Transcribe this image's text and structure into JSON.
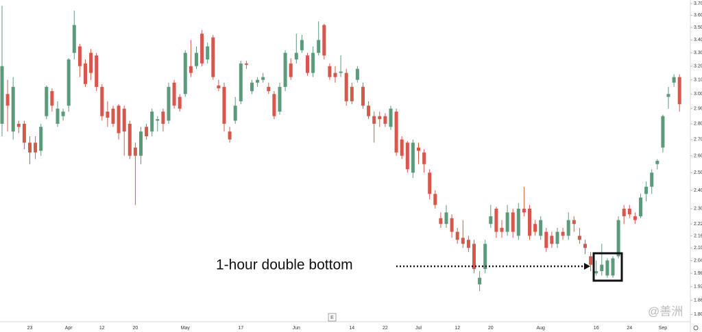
{
  "chart_data": {
    "type": "candlestick",
    "annotation": "1-hour double bottom",
    "watermark": "@善洲",
    "scale_button": "E",
    "up_color": "#5b9a7b",
    "down_color": "#d6574b",
    "log_scale": true,
    "ylim": [
      1.77,
      3.73
    ],
    "yticks": [
      {
        "value": 3.7,
        "label": "3.70"
      },
      {
        "value": 3.6,
        "label": "3.60"
      },
      {
        "value": 3.5,
        "label": "3.50"
      },
      {
        "value": 3.4,
        "label": "3.40"
      },
      {
        "value": 3.3,
        "label": "3.30"
      },
      {
        "value": 3.2,
        "label": "3.20"
      },
      {
        "value": 3.1,
        "label": "3.10"
      },
      {
        "value": 3.0,
        "label": "3.00"
      },
      {
        "value": 2.9,
        "label": "2.90"
      },
      {
        "value": 2.8,
        "label": "2.80"
      },
      {
        "value": 2.7,
        "label": "2.70"
      },
      {
        "value": 2.6,
        "label": "2.60"
      },
      {
        "value": 2.5,
        "label": "2.50"
      },
      {
        "value": 2.4,
        "label": "2.40"
      },
      {
        "value": 2.3,
        "label": "2.30"
      },
      2.22,
      2.16,
      {
        "value": 2.1,
        "label": "2.10"
      },
      2.04,
      1.98,
      1.92,
      1.86,
      {
        "value": 1.8,
        "label": "1.80"
      }
    ],
    "categories": [
      null,
      null,
      null,
      null,
      null,
      "23",
      null,
      null,
      null,
      null,
      null,
      null,
      "Apr",
      null,
      null,
      null,
      null,
      null,
      "12",
      null,
      null,
      null,
      null,
      null,
      "20",
      null,
      null,
      null,
      null,
      null,
      null,
      null,
      null,
      "May",
      null,
      null,
      null,
      null,
      null,
      null,
      null,
      null,
      null,
      "17",
      null,
      null,
      null,
      null,
      null,
      null,
      null,
      null,
      null,
      "Jun",
      null,
      null,
      null,
      null,
      null,
      null,
      null,
      null,
      null,
      "14",
      null,
      null,
      null,
      null,
      null,
      "22",
      null,
      null,
      null,
      null,
      null,
      "Jul",
      null,
      null,
      null,
      null,
      null,
      null,
      "12",
      null,
      null,
      null,
      null,
      null,
      "20",
      null,
      null,
      null,
      null,
      null,
      null,
      null,
      null,
      "Aug",
      null,
      null,
      null,
      null,
      null,
      null,
      null,
      null,
      null,
      "16",
      null,
      null,
      null,
      null,
      null,
      "24",
      null,
      null,
      null,
      null,
      null,
      "Sep",
      null,
      null,
      null
    ],
    "open": [
      2.8,
      3.0,
      2.75,
      2.8,
      2.8,
      2.68,
      2.68,
      2.63,
      2.85,
      3.02,
      2.8,
      2.85,
      2.92,
      3.3,
      3.35,
      3.22,
      3.3,
      3.28,
      3.05,
      2.88,
      2.9,
      2.92,
      2.9,
      2.8,
      2.65,
      2.6,
      2.78,
      2.75,
      2.82,
      2.88,
      2.82,
      3.08,
      2.98,
      3.0,
      3.2,
      3.2,
      3.45,
      3.25,
      3.42,
      3.06,
      3.05,
      2.75,
      2.82,
      2.95,
      3.22,
      3.02,
      3.08,
      3.1,
      3.05,
      3.0,
      2.88,
      3.05,
      3.22,
      3.25,
      3.32,
      3.28,
      3.15,
      3.3,
      3.52,
      3.2,
      3.15,
      3.15,
      3.15,
      3.05,
      3.1,
      3.05,
      2.92,
      2.85,
      2.85,
      2.85,
      2.78,
      2.88,
      2.7,
      2.68,
      2.5,
      2.65,
      2.62,
      2.5,
      2.38,
      2.25,
      2.22,
      2.25,
      2.18,
      2.15,
      2.14,
      2.12,
      1.93,
      2.0,
      2.22,
      2.3,
      2.2,
      2.18,
      2.28,
      2.16,
      2.3,
      2.3,
      2.22,
      2.16,
      2.18,
      2.16,
      2.12,
      2.18,
      2.16,
      2.24,
      2.16,
      2.12,
      2.06,
      1.98,
      1.99,
      1.97,
      1.97,
      2.06,
      2.3,
      2.3,
      2.26,
      2.26,
      2.38,
      2.42,
      2.55,
      2.65,
      2.98,
      3.08,
      3.12
    ],
    "high": [
      3.68,
      3.1,
      3.12,
      2.82,
      2.82,
      2.72,
      2.72,
      2.8,
      3.06,
      3.04,
      2.95,
      2.9,
      3.26,
      3.64,
      3.37,
      3.25,
      3.33,
      3.3,
      3.07,
      2.95,
      2.92,
      2.93,
      2.92,
      2.82,
      2.68,
      2.78,
      2.8,
      2.9,
      2.85,
      2.9,
      3.08,
      3.1,
      3.0,
      3.32,
      3.4,
      3.35,
      3.48,
      3.38,
      3.44,
      3.1,
      3.08,
      2.78,
      2.98,
      3.24,
      3.24,
      3.1,
      3.12,
      3.15,
      3.08,
      3.02,
      3.08,
      3.32,
      3.26,
      3.45,
      3.44,
      3.3,
      3.35,
      3.55,
      3.53,
      3.22,
      3.2,
      3.28,
      3.18,
      3.08,
      3.2,
      3.08,
      2.95,
      2.88,
      2.88,
      2.87,
      2.92,
      2.9,
      2.72,
      2.69,
      2.7,
      2.68,
      2.64,
      2.52,
      2.4,
      2.28,
      2.32,
      2.27,
      2.2,
      2.24,
      2.16,
      2.14,
      1.99,
      2.14,
      2.32,
      2.31,
      2.24,
      2.32,
      2.3,
      2.33,
      2.42,
      2.32,
      2.24,
      2.26,
      2.2,
      2.18,
      2.2,
      2.2,
      2.28,
      2.26,
      2.2,
      2.14,
      2.08,
      2.04,
      2.12,
      2.05,
      2.06,
      2.26,
      2.32,
      2.32,
      2.28,
      2.38,
      2.45,
      2.52,
      2.58,
      2.86,
      3.05,
      3.14,
      3.14
    ],
    "low": [
      2.72,
      2.75,
      2.7,
      2.74,
      2.64,
      2.55,
      2.58,
      2.6,
      2.83,
      2.88,
      2.78,
      2.82,
      2.88,
      3.25,
      3.12,
      3.05,
      3.1,
      3.02,
      2.82,
      2.78,
      2.78,
      2.7,
      2.6,
      2.58,
      2.32,
      2.55,
      2.7,
      2.72,
      2.75,
      2.75,
      2.8,
      2.9,
      2.88,
      2.98,
      3.12,
      3.18,
      3.2,
      3.22,
      3.1,
      3.02,
      2.75,
      2.68,
      2.8,
      2.93,
      3.18,
      3.0,
      3.05,
      3.08,
      3.0,
      2.83,
      2.86,
      3.02,
      3.1,
      3.22,
      3.3,
      3.13,
      3.12,
      3.28,
      3.25,
      3.1,
      3.08,
      3.12,
      2.92,
      2.93,
      3.08,
      2.9,
      2.83,
      2.68,
      2.78,
      2.78,
      2.76,
      2.6,
      2.58,
      2.5,
      2.47,
      2.55,
      2.5,
      2.35,
      2.3,
      2.2,
      2.2,
      2.15,
      2.12,
      2.1,
      2.08,
      1.98,
      1.9,
      1.98,
      2.2,
      2.15,
      2.15,
      2.16,
      2.15,
      2.14,
      2.26,
      2.14,
      2.16,
      2.14,
      2.08,
      2.1,
      2.1,
      2.14,
      2.14,
      2.18,
      2.12,
      2.07,
      1.99,
      1.97,
      1.97,
      1.96,
      1.96,
      2.05,
      2.22,
      2.25,
      2.22,
      2.25,
      2.34,
      2.38,
      2.52,
      2.62,
      2.9,
      3.05,
      2.88
    ],
    "close": [
      3.2,
      2.92,
      3.05,
      2.78,
      2.68,
      2.62,
      2.62,
      2.78,
      3.05,
      2.92,
      2.9,
      2.88,
      3.25,
      3.52,
      3.2,
      3.07,
      3.15,
      3.05,
      2.85,
      2.84,
      2.8,
      2.74,
      2.75,
      2.6,
      2.6,
      2.75,
      2.72,
      2.88,
      2.83,
      2.8,
      3.05,
      2.92,
      2.9,
      3.3,
      3.15,
      3.3,
      3.22,
      3.35,
      3.12,
      3.04,
      2.8,
      2.7,
      2.92,
      3.22,
      3.21,
      3.08,
      3.1,
      3.12,
      3.02,
      2.85,
      3.05,
      3.3,
      3.12,
      3.3,
      3.4,
      3.15,
      3.3,
      3.4,
      3.28,
      3.12,
      3.12,
      3.16,
      2.95,
      2.95,
      3.18,
      2.92,
      2.85,
      2.8,
      2.83,
      2.8,
      2.9,
      2.62,
      2.6,
      2.52,
      2.68,
      2.63,
      2.55,
      2.38,
      2.32,
      2.22,
      2.28,
      2.18,
      2.14,
      2.12,
      2.1,
      2.0,
      1.96,
      2.12,
      2.26,
      2.18,
      2.18,
      2.28,
      2.18,
      2.3,
      2.28,
      2.16,
      2.18,
      2.24,
      2.1,
      2.12,
      2.18,
      2.16,
      2.24,
      2.22,
      2.14,
      2.1,
      2.02,
      1.99,
      2.02,
      2.04,
      2.05,
      2.24,
      2.26,
      2.27,
      2.24,
      2.36,
      2.42,
      2.5,
      2.57,
      2.85,
      3.0,
      3.12,
      2.93
    ]
  }
}
